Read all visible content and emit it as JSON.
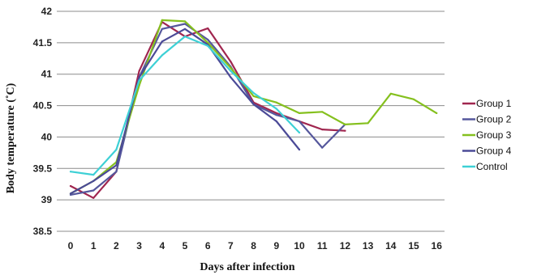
{
  "chart_data": {
    "type": "line",
    "title": "",
    "xlabel": "Days after infection",
    "ylabel": "Body temperature (˚C)",
    "x": [
      0,
      1,
      2,
      3,
      4,
      5,
      6,
      7,
      8,
      9,
      10,
      11,
      12,
      13,
      14,
      15,
      16
    ],
    "ylim": [
      38.5,
      42
    ],
    "yticks": [
      38.5,
      39,
      39.5,
      40,
      40.5,
      41,
      41.5,
      42
    ],
    "y_tick_labels": [
      "38.5",
      "39",
      "39.5",
      "40",
      "40.5",
      "41",
      "41.5",
      "42"
    ],
    "x_tick_labels": [
      "0",
      "1",
      "2",
      "3",
      "4",
      "5",
      "6",
      "7",
      "8",
      "9",
      "10",
      "11",
      "12",
      "13",
      "14",
      "15",
      "16"
    ],
    "grid": "horizontal",
    "legend_position": "right",
    "series": [
      {
        "name": "Group 1",
        "color": "#a0264f",
        "points": [
          [
            0,
            39.22
          ],
          [
            1,
            39.03
          ],
          [
            2,
            39.45
          ],
          [
            3,
            41.05
          ],
          [
            4,
            41.83
          ],
          [
            5,
            41.6
          ],
          [
            6,
            41.73
          ],
          [
            7,
            41.2
          ],
          [
            8,
            40.55
          ],
          [
            9,
            40.38
          ],
          [
            10,
            40.25
          ],
          [
            11,
            40.12
          ],
          [
            12,
            40.1
          ]
        ]
      },
      {
        "name": "Group 2",
        "color": "#55579c",
        "points": [
          [
            0,
            39.08
          ],
          [
            1,
            39.15
          ],
          [
            2,
            39.45
          ],
          [
            3,
            40.95
          ],
          [
            4,
            41.72
          ],
          [
            5,
            41.8
          ],
          [
            6,
            41.55
          ],
          [
            7,
            41.12
          ],
          [
            8,
            40.52
          ],
          [
            9,
            40.35
          ],
          [
            10,
            40.25
          ],
          [
            11,
            39.83
          ],
          [
            12,
            40.2
          ]
        ]
      },
      {
        "name": "Group 3",
        "color": "#85c01e",
        "points": [
          [
            0,
            39.1
          ],
          [
            1,
            39.3
          ],
          [
            2,
            39.6
          ],
          [
            3,
            40.82
          ],
          [
            4,
            41.86
          ],
          [
            5,
            41.84
          ],
          [
            6,
            41.5
          ],
          [
            7,
            41.1
          ],
          [
            8,
            40.65
          ],
          [
            9,
            40.55
          ],
          [
            10,
            40.38
          ],
          [
            11,
            40.4
          ],
          [
            12,
            40.2
          ],
          [
            13,
            40.22
          ],
          [
            14,
            40.69
          ],
          [
            15,
            40.6
          ],
          [
            16,
            40.38
          ]
        ]
      },
      {
        "name": "Group 4",
        "color": "#4b4a97",
        "points": [
          [
            0,
            39.1
          ],
          [
            1,
            39.3
          ],
          [
            2,
            39.55
          ],
          [
            3,
            40.95
          ],
          [
            4,
            41.52
          ],
          [
            5,
            41.72
          ],
          [
            6,
            41.47
          ],
          [
            7,
            40.95
          ],
          [
            8,
            40.52
          ],
          [
            9,
            40.25
          ],
          [
            10,
            39.8
          ]
        ]
      },
      {
        "name": "Control",
        "color": "#3dd0d5",
        "points": [
          [
            0,
            39.45
          ],
          [
            1,
            39.4
          ],
          [
            2,
            39.8
          ],
          [
            3,
            40.9
          ],
          [
            4,
            41.3
          ],
          [
            5,
            41.6
          ],
          [
            6,
            41.45
          ],
          [
            7,
            41.05
          ],
          [
            8,
            40.7
          ],
          [
            9,
            40.45
          ],
          [
            10,
            40.07
          ]
        ]
      }
    ]
  }
}
